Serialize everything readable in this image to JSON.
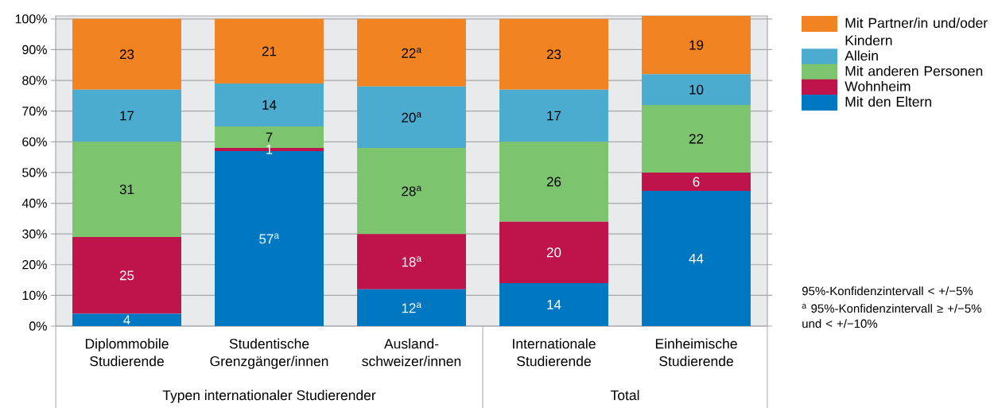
{
  "chart_data": {
    "type": "bar",
    "stacked": true,
    "categories": [
      "Diplommobile Studierende",
      "Studentische Grenzgänger/innen",
      "Ausland-schweizer/innen",
      "Internationale Studierende",
      "Einheimische Studierende"
    ],
    "series": [
      {
        "name": "Mit den Eltern",
        "color": "#0078c1",
        "values": [
          4,
          57,
          12,
          14,
          44
        ],
        "value_labels": [
          "4",
          "57$^{a}$",
          "12$^{a}$",
          "14",
          "44"
        ]
      },
      {
        "name": "Wohnheim",
        "color": "#be144b",
        "values": [
          25,
          1,
          18,
          20,
          6
        ],
        "value_labels": [
          "25",
          "1",
          "18$^{a}$",
          "20",
          "6"
        ]
      },
      {
        "name": "Mit anderen Personen",
        "color": "#7dc46f",
        "values": [
          31,
          7,
          28,
          26,
          22
        ],
        "value_labels": [
          "31",
          "7",
          "28$^{a}$",
          "26",
          "22"
        ]
      },
      {
        "name": "Allein",
        "color": "#4bacd0",
        "values": [
          17,
          14,
          20,
          17,
          10
        ],
        "value_labels": [
          "17",
          "14",
          "20$^{a}$",
          "17",
          "10"
        ]
      },
      {
        "name": "Mit Partner/in und/oder Kindern",
        "color": "#f28322",
        "values": [
          23,
          21,
          22,
          23,
          19
        ],
        "value_labels": [
          "23",
          "21",
          "22$^{a}$",
          "23",
          "19"
        ]
      }
    ],
    "ylim": [
      0,
      101
    ],
    "yticks": [
      {
        "value": 0,
        "label": "0%"
      },
      {
        "value": 10,
        "label": "10%"
      },
      {
        "value": 20,
        "label": "20%"
      },
      {
        "value": 30,
        "label": "30%"
      },
      {
        "value": 40,
        "label": "40%"
      },
      {
        "value": 50,
        "label": "50%"
      },
      {
        "value": 60,
        "label": "60%"
      },
      {
        "value": 70,
        "label": "70%"
      },
      {
        "value": 80,
        "label": "80%"
      },
      {
        "value": 90,
        "label": "90%"
      },
      {
        "value": 100,
        "label": "100%"
      }
    ],
    "grid": "y",
    "legend": "right",
    "annotations": [
      "Typen internationaler Studierender",
      "Total",
      "95%-Konfidenzintervall < +/−5%",
      "$^{a}$ 95%-Konfidenzintervall ≥ +/−5% und < +/−10%"
    ]
  }
}
